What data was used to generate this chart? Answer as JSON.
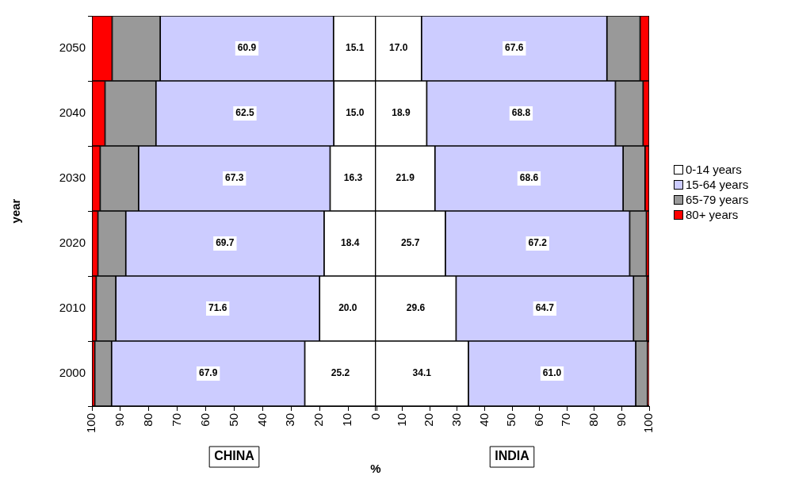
{
  "chart_data": [
    {
      "type": "bar",
      "orientation": "horizontal",
      "stacked": true,
      "ylabel": "year",
      "xlabel": "%",
      "categories": [
        "2050",
        "2040",
        "2030",
        "2020",
        "2010",
        "2000"
      ],
      "xlim": [
        100,
        0
      ],
      "xticks": [
        100,
        90,
        80,
        70,
        60,
        50,
        40,
        30,
        20,
        10,
        0
      ],
      "series": [
        {
          "color": "#ffffff",
          "values": [
            15.1,
            15.0,
            16.3,
            18.4,
            20.0,
            25.2
          ],
          "value_labels": [
            "15.1",
            "15.0",
            "16.3",
            "18.4",
            "20.0",
            "25.2"
          ]
        },
        {
          "color": "#ccccff",
          "values": [
            60.9,
            62.5,
            67.3,
            69.7,
            71.6,
            67.9
          ],
          "value_labels": [
            "60.9",
            "62.5",
            "67.3",
            "69.7",
            "71.6",
            "67.9"
          ]
        },
        {
          "color": "#999999",
          "values": [
            16.9,
            17.9,
            13.5,
            9.8,
            6.9,
            5.9
          ]
        },
        {
          "color": "#ff0000",
          "values": [
            7.1,
            4.6,
            2.9,
            2.1,
            1.5,
            1.0
          ]
        }
      ],
      "annotations": [
        "CHINA"
      ],
      "grid": false
    },
    {
      "type": "bar",
      "orientation": "horizontal",
      "stacked": true,
      "categories": [
        "2050",
        "2040",
        "2030",
        "2020",
        "2010",
        "2000"
      ],
      "xlim": [
        0,
        100
      ],
      "xticks": [
        {
          "value": 0,
          "label": null
        },
        10,
        20,
        30,
        40,
        50,
        60,
        70,
        80,
        90,
        100
      ],
      "series": [
        {
          "name": "0-14 years",
          "color": "#ffffff",
          "values": [
            17.0,
            18.9,
            21.9,
            25.7,
            29.6,
            34.1
          ],
          "value_labels": [
            "17.0",
            "18.9",
            "21.9",
            "25.7",
            "29.6",
            "34.1"
          ]
        },
        {
          "name": "15-64 years",
          "color": "#ccccff",
          "values": [
            67.6,
            68.8,
            68.6,
            67.2,
            64.7,
            61.0
          ],
          "value_labels": [
            "67.6",
            "68.8",
            "68.6",
            "67.2",
            "64.7",
            "61.0"
          ]
        },
        {
          "name": "65-79 years",
          "color": "#999999",
          "values": [
            12.1,
            10.1,
            8.0,
            6.1,
            4.9,
            4.3
          ]
        },
        {
          "name": "80+ years",
          "color": "#ff0000",
          "values": [
            3.3,
            2.2,
            1.5,
            1.0,
            0.8,
            0.6
          ]
        }
      ],
      "annotations": [
        "INDIA"
      ],
      "legend": "right",
      "tick_labels": "x",
      "grid": false
    }
  ]
}
